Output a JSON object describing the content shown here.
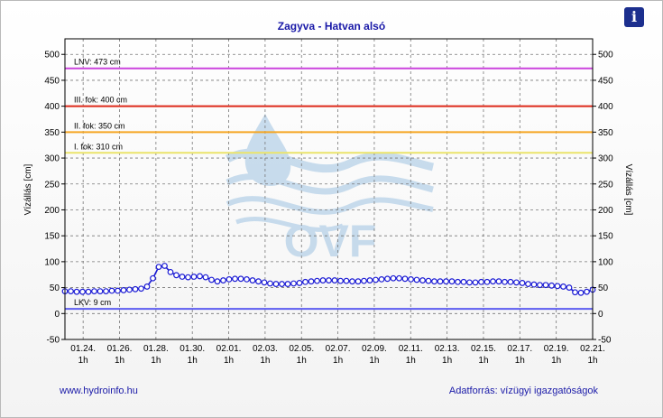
{
  "title": "Zagyva - Hatvan alsó",
  "info_icon": "i",
  "footer": {
    "left": "www.hydroinfo.hu",
    "right": "Adatforrás: vízügyi igazgatóságok"
  },
  "watermark": "OVF",
  "chart_data": {
    "type": "line",
    "ylabel": "Vízállás [cm]",
    "ylim": [
      -50,
      530
    ],
    "y_ticks": [
      -50,
      0,
      50,
      100,
      150,
      200,
      250,
      300,
      350,
      400,
      450,
      500
    ],
    "x_ticks": [
      {
        "date": "01.24.",
        "time": "1h"
      },
      {
        "date": "01.26.",
        "time": "1h"
      },
      {
        "date": "01.28.",
        "time": "1h"
      },
      {
        "date": "01.30.",
        "time": "1h"
      },
      {
        "date": "02.01.",
        "time": "1h"
      },
      {
        "date": "02.03.",
        "time": "1h"
      },
      {
        "date": "02.05.",
        "time": "1h"
      },
      {
        "date": "02.07.",
        "time": "1h"
      },
      {
        "date": "02.09.",
        "time": "1h"
      },
      {
        "date": "02.11.",
        "time": "1h"
      },
      {
        "date": "02.13.",
        "time": "1h"
      },
      {
        "date": "02.15.",
        "time": "1h"
      },
      {
        "date": "02.17.",
        "time": "1h"
      },
      {
        "date": "02.19.",
        "time": "1h"
      },
      {
        "date": "02.21.",
        "time": "1h"
      }
    ],
    "thresholds": [
      {
        "label": "LNV: 473 cm",
        "value": 473,
        "color": "#cc44dd"
      },
      {
        "label": "III. fok: 400 cm",
        "value": 400,
        "color": "#dd2a1a"
      },
      {
        "label": "II. fok: 350 cm",
        "value": 350,
        "color": "#f5a623"
      },
      {
        "label": "I. fok: 310 cm",
        "value": 310,
        "color": "#ebe46a"
      },
      {
        "label": "LKV: 9 cm",
        "value": 9,
        "color": "#5d5df0"
      }
    ],
    "series": [
      {
        "color": "#1a1ad4",
        "x_start": "01.23. 1h",
        "x_end": "02.21. 1h",
        "values": [
          43,
          43,
          42,
          42,
          42,
          43,
          43,
          43,
          44,
          44,
          45,
          46,
          47,
          48,
          52,
          68,
          90,
          92,
          80,
          74,
          71,
          70,
          71,
          72,
          70,
          65,
          62,
          64,
          66,
          67,
          67,
          66,
          64,
          62,
          60,
          58,
          57,
          57,
          57,
          58,
          59,
          61,
          62,
          63,
          64,
          64,
          64,
          63,
          63,
          62,
          62,
          63,
          64,
          65,
          66,
          67,
          68,
          68,
          67,
          66,
          65,
          64,
          63,
          62,
          62,
          62,
          62,
          61,
          61,
          60,
          60,
          61,
          61,
          62,
          62,
          61,
          61,
          60,
          59,
          57,
          56,
          55,
          55,
          54,
          53,
          52,
          50,
          41,
          40,
          42,
          46
        ]
      }
    ]
  }
}
